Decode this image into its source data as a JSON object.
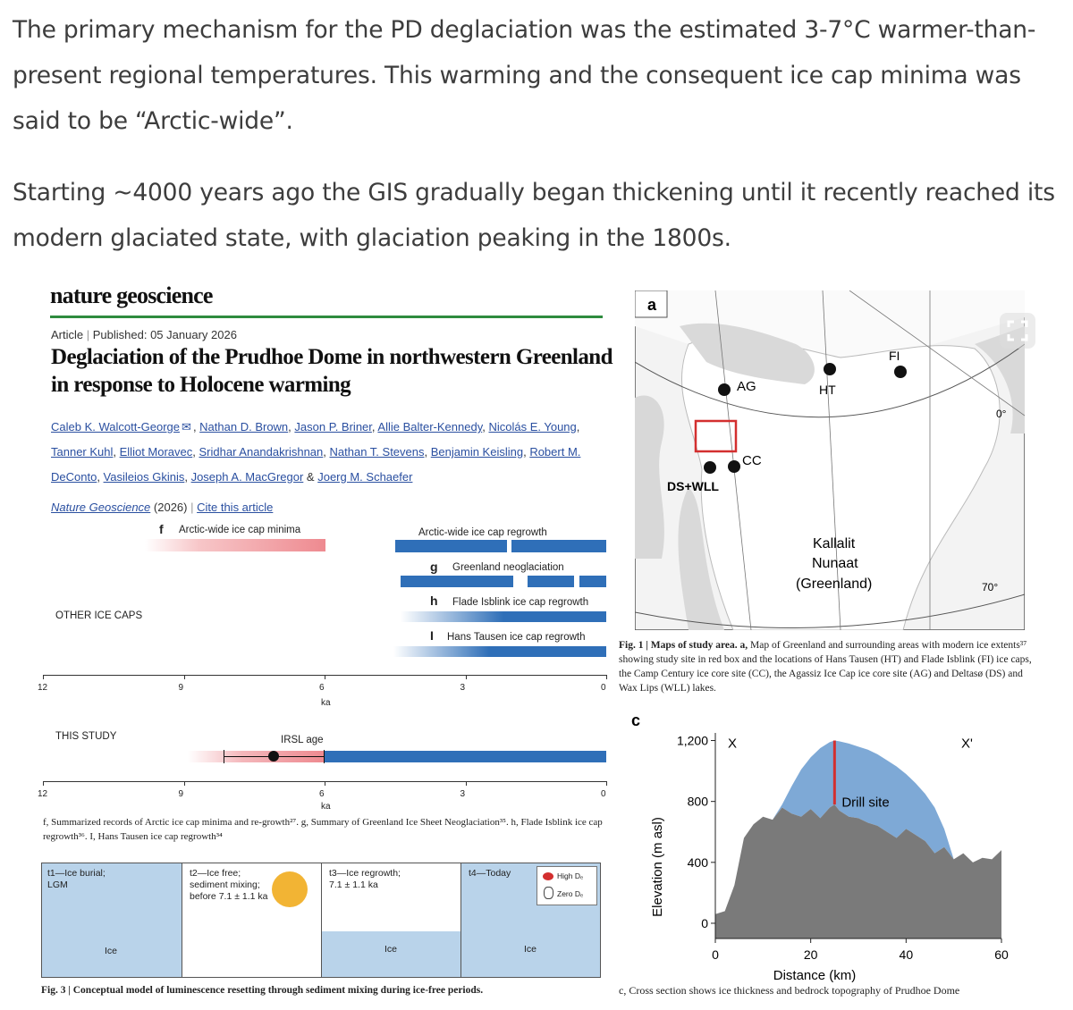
{
  "article_text": {
    "paragraph1": "The primary mechanism for the PD deglaciation was the estimated 3-7°C warmer-than-present regional temperatures. This warming and the consequent ice cap minima was said to be  “Arctic-wide”.",
    "paragraph2": "Starting ~4000 years ago the GIS gradually began thickening until it recently reached its modern glaciated state, with glaciation peaking in the 1800s."
  },
  "paper": {
    "journal": "nature geoscience",
    "type": "Article",
    "published": "Published: 05 January 2026",
    "title": "Deglaciation of the Prudhoe Dome in northwestern Greenland in response to Holocene warming",
    "authors": [
      "Caleb K. Walcott-George",
      "Nathan D. Brown",
      "Jason P. Briner",
      "Allie Balter-Kennedy",
      "Nicolás E. Young",
      "Tanner Kuhl",
      "Elliot Moravec",
      "Sridhar Anandakrishnan",
      "Nathan T. Stevens",
      "Benjamin Keisling",
      "Robert M. DeConto",
      "Vasileios Gkinis",
      "Joseph A. MacGregor",
      "Joerg M. Schaefer"
    ],
    "citation_journal": "Nature Geoscience",
    "citation_year": "(2026)",
    "cite_link": "Cite this article"
  },
  "timeline_fig": {
    "panel_f": "f",
    "label_f": "Arctic-wide ice cap minima",
    "label_regrowth": "Arctic-wide ice cap regrowth",
    "panel_g": "g",
    "label_g": "Greenland neoglaciation",
    "panel_h": "h",
    "label_h": "Flade Isblink ice cap regrowth",
    "panel_i": "I",
    "label_i": "Hans Tausen ice cap regrowth",
    "other_ice_caps": "OTHER ICE CAPS",
    "this_study": "THIS STUDY",
    "irsl": "IRSL age",
    "ticks": [
      "12",
      "9",
      "6",
      "3",
      "0"
    ],
    "axis_unit": "ka",
    "caption": "f, Summarized records of Arctic ice  cap minima and re-growth²⁷. g, Summary of Greenland Ice Sheet Neoglaciation³⁵. h, Flade Isblink ice cap regrowth³⁶. I, Hans Tausen ice cap regrowth³⁴"
  },
  "fig3": {
    "t1": "t1—Ice burial; LGM",
    "t2": "t2—Ice free; sediment mixing; before 7.1 ± 1.1 ka",
    "t3": "t3—Ice regrowth; 7.1 ± 1.1 ka",
    "t4": "t4—Today",
    "ice": "Ice",
    "legend_high": "High Dₑ",
    "legend_zero": "Zero Dₑ",
    "caption_bold": "Fig. 3 | Conceptual model of luminescence resetting through sediment mixing  during ice-free periods."
  },
  "map": {
    "panel": "a",
    "sites": [
      "AG",
      "HT",
      "FI",
      "CC",
      "DS+WLL"
    ],
    "region1": "Kallalit",
    "region2": "Nunaat",
    "region3": "(Greenland)",
    "lon_label": "0°",
    "lat_label": "70°",
    "caption_bold": "Fig. 1 | Maps of study area. a,",
    "caption": " Map of Greenland and surrounding areas with modern ice extents³⁷ showing study site in red box and the locations of Hans Tausen (HT) and Flade Isblink (FI) ice caps, the Camp Century ice core site (CC), the Agassiz Ice Cap ice core site (AG) and Deltasø (DS) and Wax Lips (WLL) lakes."
  },
  "chart_data": {
    "type": "area",
    "panel": "c",
    "xlabel": "Distance (km)",
    "ylabel": "Elevation (m asl)",
    "xlim": [
      0,
      60
    ],
    "ylim": [
      -100,
      1250
    ],
    "x_ticks": [
      0,
      20,
      40,
      60
    ],
    "y_ticks": [
      0,
      400,
      800,
      1200
    ],
    "y_tick_labels": [
      "0",
      "400",
      "800",
      "1,200"
    ],
    "end_labels": [
      "X",
      "X'"
    ],
    "annotation": "Drill site",
    "drill_site_x": 25,
    "series": [
      {
        "x": [
          0,
          2,
          4,
          6,
          8,
          10,
          12,
          14,
          16,
          18,
          20,
          22,
          24,
          25,
          26,
          28,
          30,
          32,
          34,
          36,
          38,
          40,
          42,
          44,
          46,
          48,
          50,
          52,
          54,
          56,
          58,
          60
        ],
        "bedrock": [
          60,
          80,
          250,
          560,
          650,
          700,
          680,
          760,
          720,
          700,
          750,
          690,
          760,
          780,
          740,
          700,
          690,
          660,
          640,
          600,
          560,
          620,
          580,
          540,
          460,
          500,
          420,
          460,
          400,
          430,
          420,
          480
        ],
        "surface": [
          60,
          80,
          250,
          560,
          650,
          700,
          680,
          780,
          900,
          1010,
          1090,
          1150,
          1190,
          1200,
          1195,
          1180,
          1160,
          1140,
          1110,
          1070,
          1030,
          980,
          920,
          850,
          760,
          620,
          420,
          460,
          400,
          430,
          420,
          480
        ]
      }
    ],
    "caption": "c, Cross section shows  ice thickness and bedrock topography of Prudhoe Dome"
  },
  "colors": {
    "ice": "#7ea9d6",
    "bedrock": "#7a7a7a",
    "drill": "#d32f2f",
    "bar": "#2f6fb8",
    "rule": "#2e8b3e"
  }
}
